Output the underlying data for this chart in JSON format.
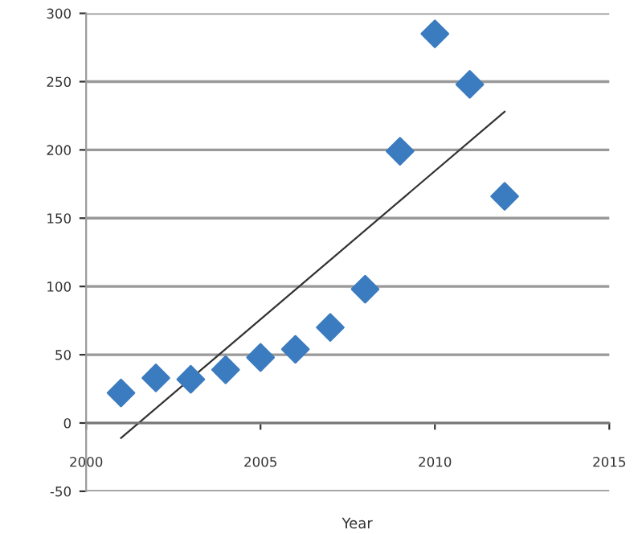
{
  "chart_data": {
    "type": "scatter",
    "xlabel": "Year",
    "xlim": [
      2000,
      2015
    ],
    "xticks": [
      2000,
      2005,
      2010,
      2015
    ],
    "ylim": [
      -50,
      300
    ],
    "yticks": [
      -50,
      0,
      50,
      100,
      150,
      200,
      250,
      300
    ],
    "grid": "y",
    "marker": "diamond",
    "legend": false,
    "series": [
      {
        "color": "#3b7bbf",
        "x": [
          2001,
          2002,
          2003,
          2004,
          2005,
          2006,
          2007,
          2008,
          2009,
          2010,
          2011,
          2012
        ],
        "values": [
          22,
          33,
          32,
          39,
          48,
          54,
          70,
          98,
          199,
          285,
          248,
          166
        ]
      },
      {
        "type": "line",
        "color": "#333333",
        "marker": "none",
        "line_style": "solid",
        "x": [
          2001,
          2012
        ],
        "values": [
          -11,
          228
        ]
      }
    ]
  }
}
